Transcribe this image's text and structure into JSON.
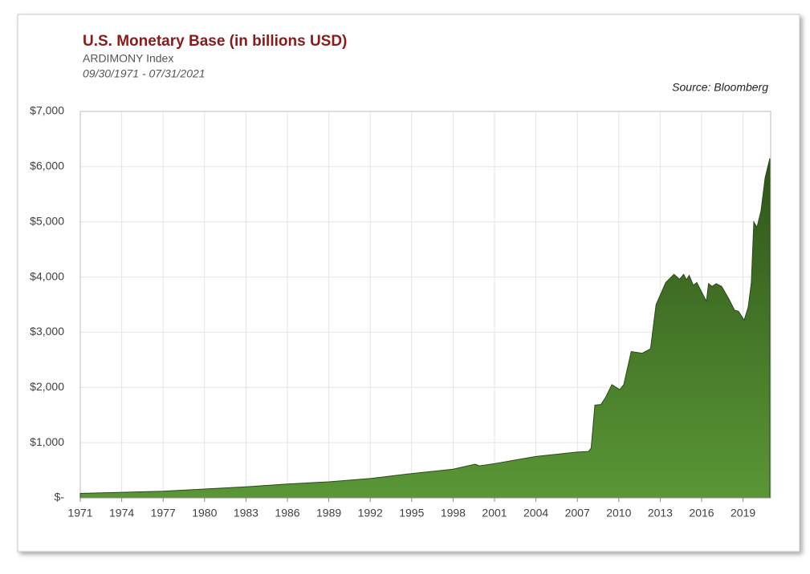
{
  "chart_data": {
    "type": "area",
    "title": "U.S. Monetary Base (in billions USD)",
    "subtitle": "ARDIMONY Index",
    "date_range": "09/30/1971 - 07/31/2021",
    "source": "Source: Bloomberg",
    "color": "#3f7226",
    "grid": true,
    "x": [
      1971,
      1974,
      1977,
      1980,
      1983,
      1986,
      1989,
      1992,
      1995,
      1998,
      1999.6,
      1999.9,
      2001,
      2004,
      2007,
      2007.8,
      2008.0,
      2008.27,
      2008.7,
      2009.0,
      2009.5,
      2010.07,
      2010.36,
      2010.9,
      2011.7,
      2012.3,
      2012.7,
      2013.4,
      2014.0,
      2014.4,
      2014.7,
      2014.9,
      2015.1,
      2015.4,
      2015.65,
      2016.35,
      2016.5,
      2016.76,
      2017.05,
      2017.45,
      2017.98,
      2018.38,
      2018.67,
      2019.08,
      2019.37,
      2019.6,
      2019.78,
      2020.01,
      2020.3,
      2020.6,
      2020.94
    ],
    "values": [
      80,
      100,
      120,
      160,
      200,
      250,
      290,
      350,
      440,
      520,
      610,
      580,
      620,
      750,
      830,
      840,
      900,
      1680,
      1690,
      1800,
      2050,
      1960,
      2050,
      2650,
      2620,
      2700,
      3500,
      3900,
      4050,
      3960,
      4050,
      3950,
      4030,
      3850,
      3900,
      3560,
      3880,
      3830,
      3880,
      3830,
      3600,
      3400,
      3380,
      3220,
      3450,
      3900,
      5000,
      4900,
      5200,
      5800,
      6150
    ],
    "xlim": [
      1971,
      2021
    ],
    "xticks": [
      1971,
      1974,
      1977,
      1980,
      1983,
      1986,
      1989,
      1992,
      1995,
      1998,
      2001,
      2004,
      2007,
      2010,
      2013,
      2016,
      2019
    ],
    "ylim": [
      0,
      7000
    ],
    "yticks": [
      {
        "value": 0,
        "label": "$-"
      },
      {
        "value": 1000,
        "label": "$1,000"
      },
      {
        "value": 2000,
        "label": "$2,000"
      },
      {
        "value": 3000,
        "label": "$3,000"
      },
      {
        "value": 4000,
        "label": "$4,000"
      },
      {
        "value": 5000,
        "label": "$5,000"
      },
      {
        "value": 6000,
        "label": "$6,000"
      },
      {
        "value": 7000,
        "label": "$7,000"
      }
    ]
  }
}
